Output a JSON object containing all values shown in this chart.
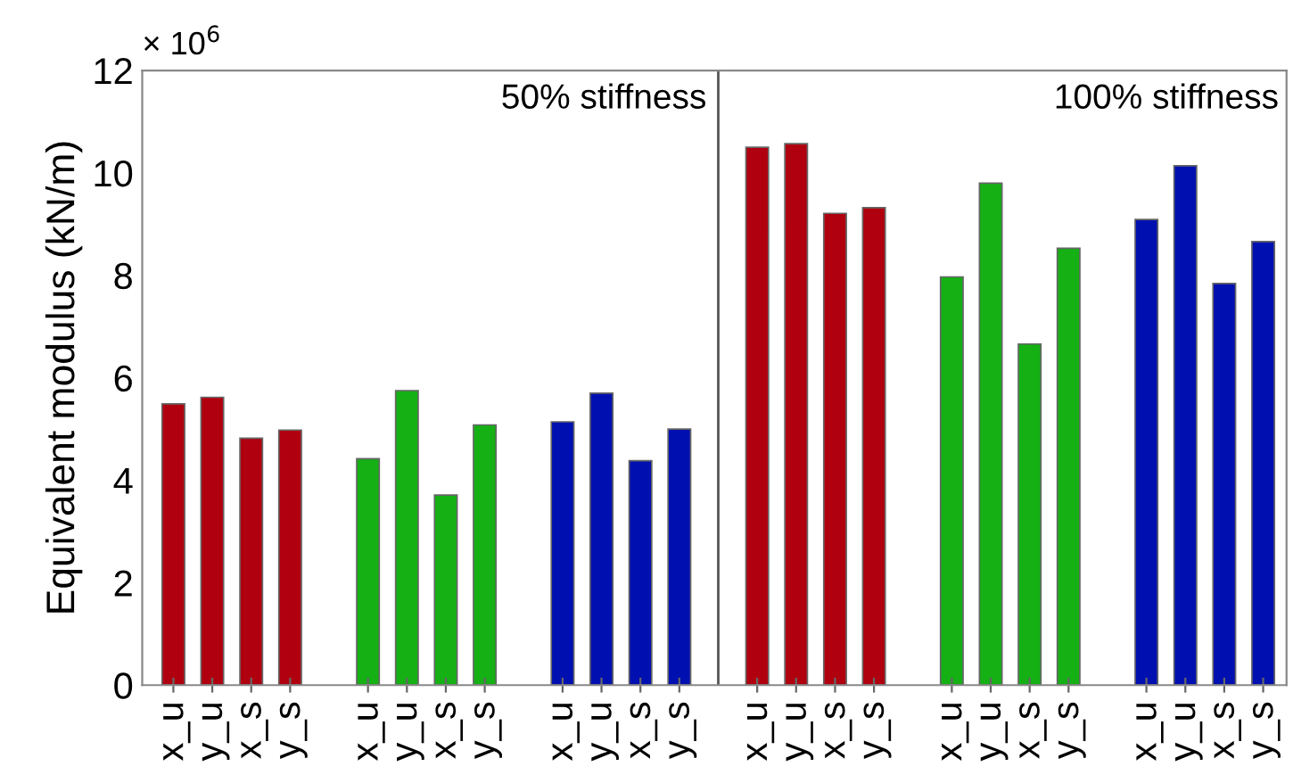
{
  "chart_data": {
    "type": "bar",
    "ylabel": "Equivalent modulus (kN/m)",
    "annotations": [
      "× 10$^{6}$",
      "50% stiffness",
      "100% stiffness"
    ],
    "categories": [
      "x_u",
      "y_u",
      "x_s",
      "y_s",
      null,
      "x_u",
      "y_u",
      "x_s",
      "y_s",
      null,
      "x_u",
      "y_u",
      "x_s",
      "y_s",
      null,
      "x_u",
      "y_u",
      "x_s",
      "y_s",
      null,
      "x_u",
      "y_u",
      "x_s",
      "y_s",
      null,
      "x_u",
      "y_u",
      "x_s",
      "y_s"
    ],
    "values": [
      5.49,
      5.62,
      4.82,
      4.98,
      null,
      4.42,
      5.75,
      3.71,
      5.08,
      null,
      5.14,
      5.7,
      4.38,
      5.0,
      null,
      10.5,
      10.57,
      9.21,
      9.32,
      null,
      7.97,
      9.8,
      6.66,
      8.53,
      null,
      9.09,
      10.14,
      7.84,
      8.66
    ],
    "colors": [
      "#b0000f",
      "#b0000f",
      "#b0000f",
      "#b0000f",
      null,
      "#14b014",
      "#14b014",
      "#14b014",
      "#14b014",
      null,
      "#0010b0",
      "#0010b0",
      "#0010b0",
      "#0010b0",
      null,
      "#b0000f",
      "#b0000f",
      "#b0000f",
      "#b0000f",
      null,
      "#14b014",
      "#14b014",
      "#14b014",
      "#14b014",
      null,
      "#0010b0",
      "#0010b0",
      "#0010b0",
      "#0010b0"
    ],
    "ylim": [
      0,
      12
    ],
    "yticks": [
      0,
      2,
      4,
      6,
      8,
      10,
      12
    ]
  }
}
